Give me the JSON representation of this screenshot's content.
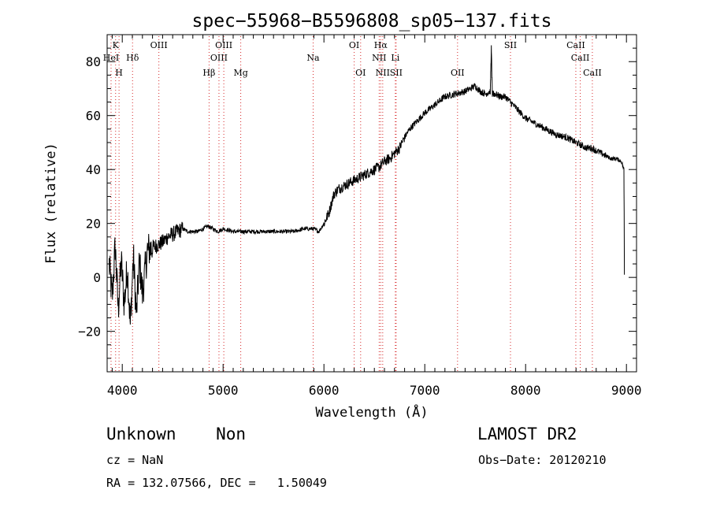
{
  "chart_data": {
    "type": "line",
    "title": "spec−55968−B5596808_sp05−137.fits",
    "xlabel": "Wavelength (Å)",
    "ylabel": "Flux (relative)",
    "xlim": [
      3850,
      9100
    ],
    "ylim": [
      -35,
      90
    ],
    "xticks": [
      4000,
      5000,
      6000,
      7000,
      8000,
      9000
    ],
    "yticks": [
      -20,
      0,
      20,
      40,
      60,
      80
    ],
    "ytick_labels": [
      "−20",
      "0",
      "20",
      "40",
      "60",
      "80"
    ],
    "grid": false,
    "series": [
      {
        "x": [
          3870,
          3900,
          3930,
          3960,
          3990,
          4020,
          4050,
          4080,
          4110,
          4140,
          4170,
          4200,
          4250,
          4300,
          4350,
          4400,
          4450,
          4500,
          4550,
          4600,
          4650,
          4700,
          4750,
          4800,
          4850,
          4900,
          4950,
          5000,
          5100,
          5200,
          5300,
          5400,
          5500,
          5600,
          5700,
          5800,
          5900,
          5950,
          6000,
          6050,
          6100,
          6150,
          6200,
          6250,
          6300,
          6350,
          6400,
          6450,
          6500,
          6550,
          6600,
          6650,
          6700,
          6750,
          6800,
          6850,
          6900,
          6950,
          7000,
          7100,
          7200,
          7300,
          7400,
          7450,
          7500,
          7550,
          7600,
          7650,
          7660,
          7670,
          7680,
          7700,
          7750,
          7800,
          7850,
          7900,
          7950,
          8000,
          8100,
          8200,
          8300,
          8400,
          8500,
          8550,
          8600,
          8650,
          8700,
          8750,
          8800,
          8850,
          8900,
          8950,
          8975,
          8980
        ],
        "y": [
          5,
          -8,
          12,
          -12,
          6,
          -10,
          4,
          -18,
          8,
          -14,
          6,
          -6,
          10,
          11,
          12,
          13,
          15,
          16,
          17,
          18,
          17,
          17,
          17,
          18,
          19,
          18,
          17,
          18,
          17,
          17,
          17,
          17,
          17,
          17,
          17,
          18,
          18,
          17,
          20,
          24,
          31,
          33,
          34,
          35,
          36,
          37,
          38,
          39,
          40,
          41,
          43,
          44,
          46,
          48,
          52,
          55,
          57,
          59,
          61,
          64,
          67,
          68,
          69,
          70,
          71,
          69,
          68,
          69,
          85,
          68,
          68,
          68,
          67,
          67,
          65,
          63,
          61,
          59,
          57,
          55,
          53,
          52,
          50,
          49,
          48,
          48,
          47,
          46,
          45,
          44,
          44,
          43,
          40,
          1
        ]
      }
    ],
    "line_markers": {
      "color": "#d62728",
      "lines": [
        {
          "label": "K",
          "x": 3934,
          "row": 0
        },
        {
          "label": "HeI",
          "x": 3889,
          "row": 1
        },
        {
          "label": "H",
          "x": 3968,
          "row": 2
        },
        {
          "label": "Hδ",
          "x": 4102,
          "row": 1
        },
        {
          "label": "OIII",
          "x": 4363,
          "row": 0
        },
        {
          "label": "Hβ",
          "x": 4861,
          "row": 2
        },
        {
          "label": "OIII",
          "x": 4959,
          "row": 1
        },
        {
          "label": "OIII",
          "x": 5007,
          "row": 0
        },
        {
          "label": "Mg",
          "x": 5175,
          "row": 2
        },
        {
          "label": "Na",
          "x": 5893,
          "row": 1
        },
        {
          "label": "OI",
          "x": 6300,
          "row": 0
        },
        {
          "label": "OI",
          "x": 6364,
          "row": 2
        },
        {
          "label": "Hα",
          "x": 6563,
          "row": 0
        },
        {
          "label": "NII",
          "x": 6548,
          "row": 1
        },
        {
          "label": "NII",
          "x": 6583,
          "row": 2
        },
        {
          "label": "Li",
          "x": 6708,
          "row": 1
        },
        {
          "label": "SII",
          "x": 6716,
          "row": 2
        },
        {
          "label": "OII",
          "x": 7325,
          "row": 2
        },
        {
          "label": "SII",
          "x": 7850,
          "row": 0
        },
        {
          "label": "CaII",
          "x": 8498,
          "row": 0
        },
        {
          "label": "CaII",
          "x": 8542,
          "row": 1
        },
        {
          "label": "CaII",
          "x": 8662,
          "row": 2
        }
      ]
    }
  },
  "footer": {
    "class_label": "Unknown    Non",
    "survey": "LAMOST DR2",
    "cz": "cz = NaN",
    "obs_date": "Obs−Date: 20120210",
    "radec": "RA = 132.07566, DEC =   1.50049"
  }
}
